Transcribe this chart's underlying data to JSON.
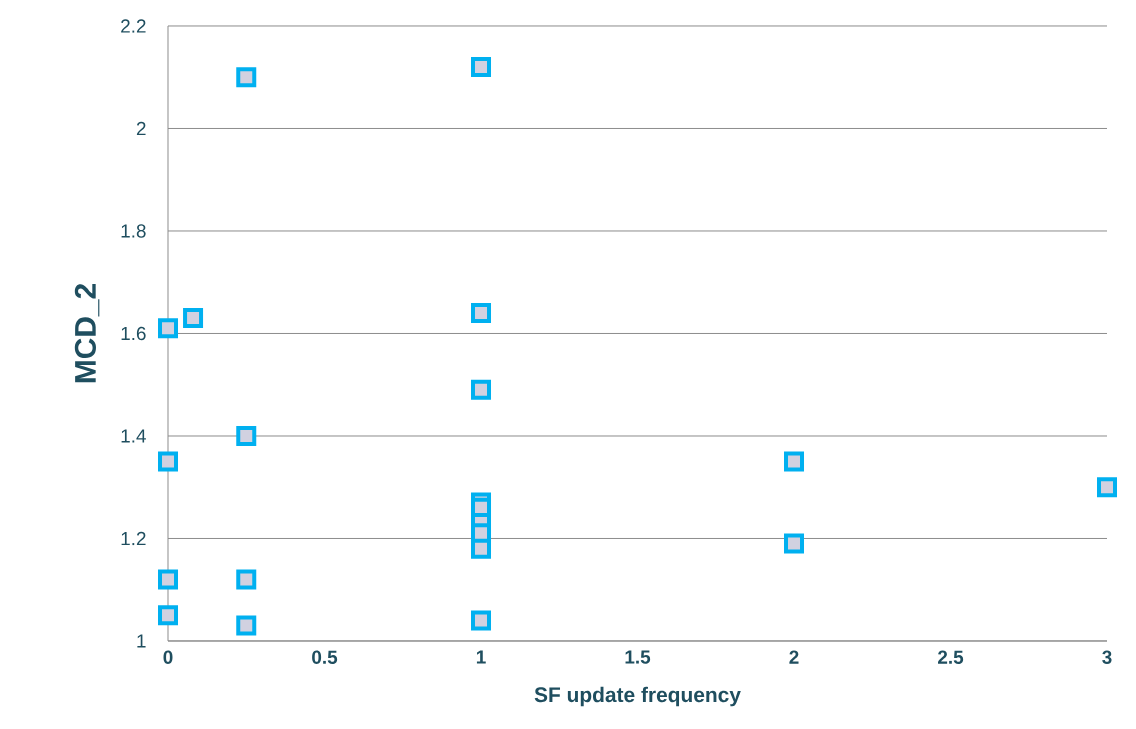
{
  "chart_data": {
    "type": "scatter",
    "xlabel": "SF update frequency",
    "ylabel": "MCD_2",
    "x": [
      0,
      0.08,
      0.25,
      1,
      1,
      1,
      0,
      0.25,
      2,
      3,
      2,
      0,
      0.25,
      0,
      0.25,
      1,
      1,
      1,
      1,
      1,
      1
    ],
    "values": [
      1.61,
      1.63,
      2.1,
      2.12,
      1.64,
      1.49,
      1.35,
      1.4,
      1.35,
      1.3,
      1.19,
      1.12,
      1.12,
      1.05,
      1.03,
      1.04,
      1.27,
      1.26,
      1.23,
      1.21,
      1.18
    ],
    "color": "#00b0f0",
    "marker": "square",
    "grid": "y",
    "xlim": [
      0,
      3
    ],
    "ylim": [
      1,
      2.2
    ],
    "xticks": [
      0,
      0.5,
      1,
      1.5,
      2,
      2.5,
      3
    ],
    "yticks": [
      1,
      1.2,
      1.4,
      1.6,
      1.8,
      2,
      2.2
    ]
  }
}
